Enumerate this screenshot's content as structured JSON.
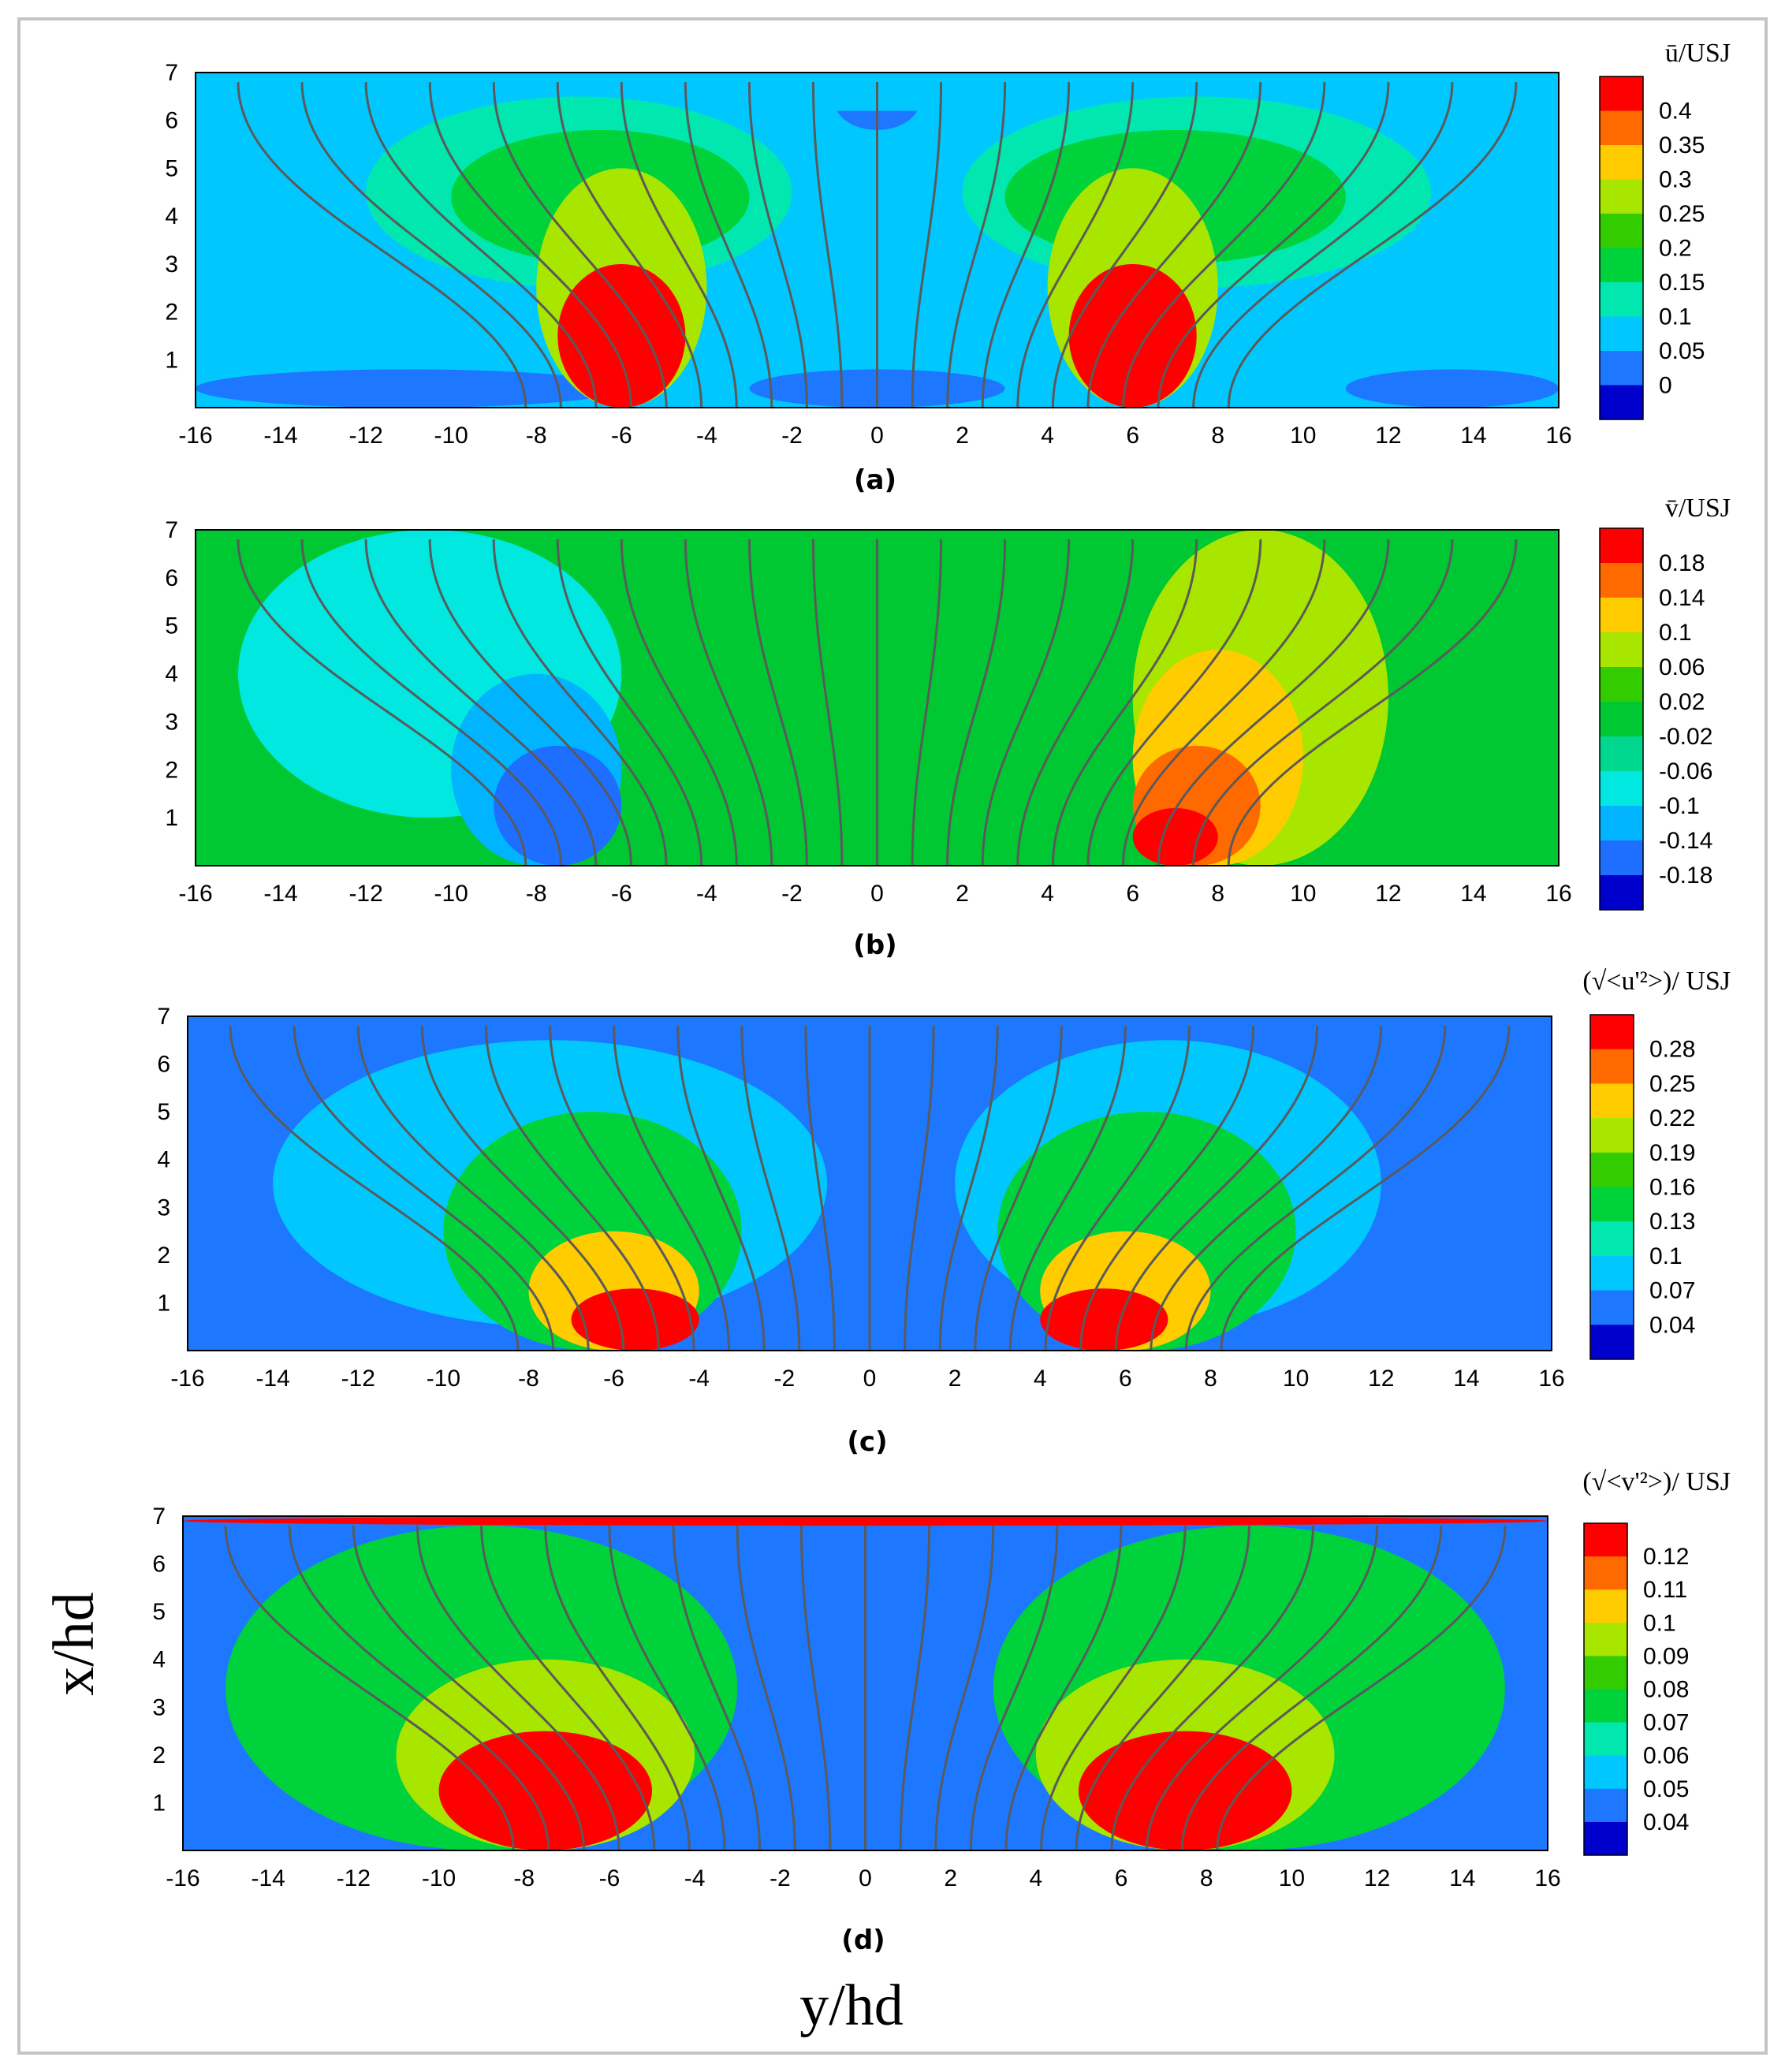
{
  "figure": {
    "xlabel": "y/hd",
    "ylabel": "x/hd"
  },
  "chart_data": [
    {
      "type": "heatmap",
      "panel_label": "(a)",
      "colorbar_title": "ū/USJ",
      "colorbar_ticks": [
        "0.4",
        "0.35",
        "0.3",
        "0.25",
        "0.2",
        "0.15",
        "0.1",
        "0.05",
        "0"
      ],
      "colorbar_colors": [
        "#ff0000",
        "#ff6a00",
        "#ffcc00",
        "#a8e600",
        "#33cc00",
        "#00d23c",
        "#00e8b0",
        "#00c8ff",
        "#1e78ff",
        "#0000cc"
      ],
      "x_ticks": [
        "-16",
        "-14",
        "-12",
        "-10",
        "-8",
        "-6",
        "-4",
        "-2",
        "0",
        "2",
        "4",
        "6",
        "8",
        "10",
        "12",
        "14",
        "16"
      ],
      "y_ticks": [
        "1",
        "2",
        "3",
        "4",
        "5",
        "6",
        "7"
      ],
      "xlim": [
        -16,
        16
      ],
      "ylim": [
        0,
        7
      ],
      "background_level": 0.05,
      "regions": [
        {
          "level": 0.0,
          "x": [
            -16,
            -6
          ],
          "y": [
            0,
            0.8
          ]
        },
        {
          "level": 0.0,
          "x": [
            -3,
            3
          ],
          "y": [
            0,
            0.8
          ]
        },
        {
          "level": 0.0,
          "x": [
            11,
            16
          ],
          "y": [
            0,
            0.8
          ]
        },
        {
          "level": 0.0,
          "x": [
            -1,
            1
          ],
          "y": [
            5.8,
            7
          ]
        },
        {
          "level": 0.05,
          "x": [
            -16,
            -7
          ],
          "y": [
            0.8,
            1.8
          ]
        },
        {
          "level": 0.05,
          "x": [
            -16,
            16
          ],
          "y": [
            6.2,
            7
          ]
        },
        {
          "level": 0.1,
          "x": [
            -12,
            -2
          ],
          "y": [
            2.5,
            6.5
          ]
        },
        {
          "level": 0.1,
          "x": [
            2,
            13
          ],
          "y": [
            2.5,
            6.5
          ]
        },
        {
          "level": 0.15,
          "x": [
            -10,
            -3
          ],
          "y": [
            3,
            5.8
          ]
        },
        {
          "level": 0.15,
          "x": [
            3,
            11
          ],
          "y": [
            3,
            5.8
          ]
        },
        {
          "level": 0.25,
          "x": [
            -8,
            -4
          ],
          "y": [
            0,
            5
          ]
        },
        {
          "level": 0.25,
          "x": [
            4,
            8
          ],
          "y": [
            0,
            5
          ]
        },
        {
          "level": 0.4,
          "x": [
            -7.5,
            -4.5
          ],
          "y": [
            0,
            3
          ]
        },
        {
          "level": 0.4,
          "x": [
            4.5,
            7.5
          ],
          "y": [
            0,
            3
          ]
        }
      ]
    },
    {
      "type": "heatmap",
      "panel_label": "(b)",
      "colorbar_title": "v̄/USJ",
      "colorbar_ticks": [
        "0.18",
        "0.14",
        "0.1",
        "0.06",
        "0.02",
        "-0.02",
        "-0.06",
        "-0.1",
        "-0.14",
        "-0.18"
      ],
      "colorbar_colors": [
        "#ff0000",
        "#ff6a00",
        "#ffcc00",
        "#a8e600",
        "#33cc00",
        "#00c832",
        "#00d890",
        "#00e8e0",
        "#00b4ff",
        "#1e6eff",
        "#0000cc"
      ],
      "x_ticks": [
        "-16",
        "-14",
        "-12",
        "-10",
        "-8",
        "-6",
        "-4",
        "-2",
        "0",
        "2",
        "4",
        "6",
        "8",
        "10",
        "12",
        "14",
        "16"
      ],
      "y_ticks": [
        "1",
        "2",
        "3",
        "4",
        "5",
        "6",
        "7"
      ],
      "xlim": [
        -16,
        16
      ],
      "ylim": [
        0,
        7
      ],
      "background_level": 0.0,
      "regions": [
        {
          "level": -0.1,
          "x": [
            -15,
            -6
          ],
          "y": [
            1,
            7
          ]
        },
        {
          "level": -0.14,
          "x": [
            -10,
            -6
          ],
          "y": [
            0,
            4
          ]
        },
        {
          "level": -0.18,
          "x": [
            -9,
            -6
          ],
          "y": [
            0,
            2.5
          ]
        },
        {
          "level": 0.06,
          "x": [
            6,
            12
          ],
          "y": [
            0,
            7
          ]
        },
        {
          "level": 0.1,
          "x": [
            6,
            10
          ],
          "y": [
            0,
            4.5
          ]
        },
        {
          "level": 0.14,
          "x": [
            6,
            9
          ],
          "y": [
            0,
            2.5
          ]
        },
        {
          "level": 0.18,
          "x": [
            6,
            8
          ],
          "y": [
            0,
            1.2
          ]
        }
      ]
    },
    {
      "type": "heatmap",
      "panel_label": "(c)",
      "colorbar_title": "(√<u'²>)/ USJ",
      "colorbar_ticks": [
        "0.28",
        "0.25",
        "0.22",
        "0.19",
        "0.16",
        "0.13",
        "0.1",
        "0.07",
        "0.04"
      ],
      "colorbar_colors": [
        "#ff0000",
        "#ff6a00",
        "#ffcc00",
        "#a8e600",
        "#33cc00",
        "#00d23c",
        "#00e8b0",
        "#00c8ff",
        "#1e78ff",
        "#0000cc"
      ],
      "x_ticks": [
        "-16",
        "-14",
        "-12",
        "-10",
        "-8",
        "-6",
        "-4",
        "-2",
        "0",
        "2",
        "4",
        "6",
        "8",
        "10",
        "12",
        "14",
        "16"
      ],
      "y_ticks": [
        "1",
        "2",
        "3",
        "4",
        "5",
        "6",
        "7"
      ],
      "xlim": [
        -16,
        16
      ],
      "ylim": [
        0,
        7
      ],
      "background_level": 0.04,
      "regions": [
        {
          "level": 0.07,
          "x": [
            -14,
            -1
          ],
          "y": [
            0.5,
            6.5
          ]
        },
        {
          "level": 0.07,
          "x": [
            2,
            12
          ],
          "y": [
            0.5,
            6.5
          ]
        },
        {
          "level": 0.13,
          "x": [
            -10,
            -3
          ],
          "y": [
            0,
            5
          ]
        },
        {
          "level": 0.13,
          "x": [
            3,
            10
          ],
          "y": [
            0,
            5
          ]
        },
        {
          "level": 0.22,
          "x": [
            -8,
            -4
          ],
          "y": [
            0,
            2.5
          ]
        },
        {
          "level": 0.22,
          "x": [
            4,
            8
          ],
          "y": [
            0,
            2.5
          ]
        },
        {
          "level": 0.28,
          "x": [
            -7,
            -4
          ],
          "y": [
            0,
            1.3
          ]
        },
        {
          "level": 0.28,
          "x": [
            4,
            7
          ],
          "y": [
            0,
            1.3
          ]
        }
      ]
    },
    {
      "type": "heatmap",
      "panel_label": "(d)",
      "colorbar_title": "(√<v'²>)/ USJ",
      "colorbar_ticks": [
        "0.12",
        "0.11",
        "0.1",
        "0.09",
        "0.08",
        "0.07",
        "0.06",
        "0.05",
        "0.04"
      ],
      "colorbar_colors": [
        "#ff0000",
        "#ff6a00",
        "#ffcc00",
        "#a8e600",
        "#33cc00",
        "#00d23c",
        "#00e8b0",
        "#00c8ff",
        "#1e78ff",
        "#0000cc"
      ],
      "x_ticks": [
        "-16",
        "-14",
        "-12",
        "-10",
        "-8",
        "-6",
        "-4",
        "-2",
        "0",
        "2",
        "4",
        "6",
        "8",
        "10",
        "12",
        "14",
        "16"
      ],
      "y_ticks": [
        "1",
        "2",
        "3",
        "4",
        "5",
        "6",
        "7"
      ],
      "xlim": [
        -16,
        16
      ],
      "ylim": [
        0,
        7
      ],
      "background_level": 0.04,
      "regions": [
        {
          "level": 0.07,
          "x": [
            -15,
            -3
          ],
          "y": [
            0,
            6.8
          ]
        },
        {
          "level": 0.07,
          "x": [
            3,
            15
          ],
          "y": [
            0,
            6.8
          ]
        },
        {
          "level": 0.09,
          "x": [
            -11,
            -4
          ],
          "y": [
            0,
            4
          ]
        },
        {
          "level": 0.09,
          "x": [
            4,
            11
          ],
          "y": [
            0,
            4
          ]
        },
        {
          "level": 0.12,
          "x": [
            -10,
            -5
          ],
          "y": [
            0,
            2.5
          ]
        },
        {
          "level": 0.12,
          "x": [
            5,
            10
          ],
          "y": [
            0,
            2.5
          ]
        },
        {
          "level": 0.12,
          "x": [
            -16,
            16
          ],
          "y": [
            6.8,
            7
          ]
        }
      ]
    }
  ]
}
